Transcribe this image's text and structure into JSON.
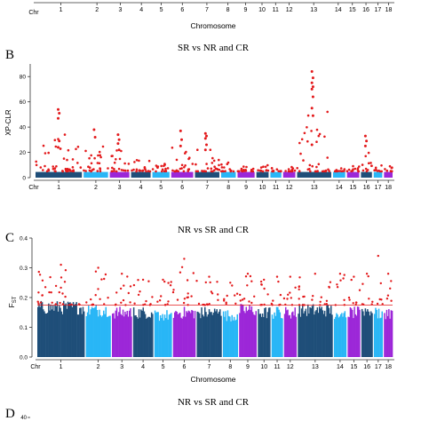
{
  "colors": {
    "highlight": "#e31a1c",
    "threshold_line": "#e31a1c",
    "chromosome_palette": [
      "#1f4e79",
      "#29b6f6",
      "#9c27d8"
    ]
  },
  "panel_a_bottom": {
    "xlabel": "Chromosome",
    "axis_prefix": "Chr",
    "chromosomes": [
      "1",
      "2",
      "3",
      "4",
      "5",
      "6",
      "7",
      "8",
      "9",
      "10",
      "11",
      "12",
      "13",
      "14",
      "15",
      "16",
      "17",
      "18"
    ]
  },
  "chart_data": [
    {
      "type": "scatter",
      "panel_letter": "B",
      "title": "SR vs NR and CR",
      "ylabel": "XP-CLR",
      "ylim": [
        0,
        90
      ],
      "yticks": [
        "0",
        "20",
        "40",
        "60",
        "80"
      ],
      "axis_prefix": "Chr",
      "categories": [
        "1",
        "2",
        "3",
        "4",
        "5",
        "6",
        "7",
        "8",
        "9",
        "10",
        "11",
        "12",
        "13",
        "14",
        "15",
        "16",
        "17",
        "18"
      ],
      "chromosome_relative_length": [
        1.9,
        1.0,
        0.8,
        0.8,
        0.7,
        0.9,
        1.0,
        0.6,
        0.7,
        0.5,
        0.45,
        0.5,
        1.4,
        0.5,
        0.5,
        0.45,
        0.35,
        0.35
      ],
      "threshold": 5,
      "background_max": [
        4.5,
        4.5,
        4.5,
        4.5,
        4.5,
        4.5,
        4.5,
        4.5,
        4.5,
        4.5,
        4.5,
        4.5,
        4.5,
        4.5,
        4.5,
        4.5,
        4.5,
        4.5
      ],
      "outlier_max": [
        54,
        38,
        34,
        22,
        15,
        37,
        35,
        20,
        12,
        14,
        12,
        12,
        84,
        12,
        12,
        33,
        15,
        16
      ],
      "peaks": [
        {
          "chromosome": "1",
          "values": [
            54,
            51,
            47,
            29,
            24
          ]
        },
        {
          "chromosome": "2",
          "values": [
            38,
            32
          ]
        },
        {
          "chromosome": "3",
          "values": [
            34,
            30,
            27,
            22
          ]
        },
        {
          "chromosome": "6",
          "values": [
            37,
            30,
            25
          ]
        },
        {
          "chromosome": "7",
          "values": [
            35,
            33,
            31,
            26,
            22
          ]
        },
        {
          "chromosome": "13",
          "values": [
            84,
            79,
            75,
            72,
            70,
            64,
            55,
            49,
            26
          ]
        },
        {
          "chromosome": "16",
          "values": [
            33,
            29,
            25
          ]
        }
      ]
    },
    {
      "type": "scatter",
      "panel_letter": "C",
      "title": "NR vs SR and CR",
      "ylabel": "FST",
      "ylabel_main": "F",
      "ylabel_sub": "ST",
      "xlabel": "Chromosome",
      "ylim": [
        0,
        0.4
      ],
      "yticks": [
        "0.0",
        "0.1",
        "0.2",
        "0.3",
        "0.4"
      ],
      "axis_prefix": "Chr",
      "categories": [
        "1",
        "2",
        "3",
        "4",
        "5",
        "6",
        "7",
        "8",
        "9",
        "10",
        "11",
        "12",
        "13",
        "14",
        "15",
        "16",
        "17",
        "18"
      ],
      "chromosome_relative_length": [
        1.9,
        1.0,
        0.8,
        0.8,
        0.7,
        0.9,
        1.0,
        0.6,
        0.7,
        0.5,
        0.45,
        0.5,
        1.4,
        0.5,
        0.5,
        0.45,
        0.35,
        0.35
      ],
      "threshold": 0.175,
      "background_max": [
        0.19,
        0.18,
        0.17,
        0.17,
        0.16,
        0.17,
        0.17,
        0.16,
        0.18,
        0.17,
        0.17,
        0.17,
        0.18,
        0.17,
        0.17,
        0.18,
        0.17,
        0.17
      ],
      "outlier_max": [
        0.31,
        0.3,
        0.28,
        0.26,
        0.26,
        0.33,
        0.27,
        0.25,
        0.28,
        0.26,
        0.27,
        0.27,
        0.28,
        0.28,
        0.27,
        0.28,
        0.34,
        0.28
      ]
    },
    {
      "type": "scatter",
      "panel_letter": "D",
      "title": "NR vs SR and CR",
      "ytick_visible": "40"
    }
  ]
}
